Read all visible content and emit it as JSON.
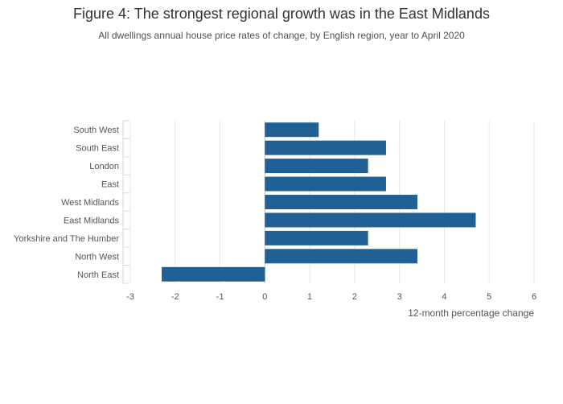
{
  "chart_data": {
    "type": "bar",
    "orientation": "horizontal",
    "title": "Figure 4: The strongest regional growth was in the East Midlands",
    "subtitle": "All dwellings annual house price rates of change, by English region, year to April 2020",
    "categories": [
      "South West",
      "South East",
      "London",
      "East",
      "West Midlands",
      "East Midlands",
      "Yorkshire and The Humber",
      "North West",
      "North East"
    ],
    "values": [
      1.2,
      2.7,
      2.3,
      2.7,
      3.4,
      4.7,
      2.3,
      3.4,
      -2.3
    ],
    "xlim": [
      -3,
      6
    ],
    "xticks": [
      -3,
      -2,
      -1,
      0,
      1,
      2,
      3,
      4,
      5,
      6
    ],
    "xlabel": "12-month percentage change",
    "ylabel": "",
    "grid": true,
    "bar_color": "#206095"
  }
}
